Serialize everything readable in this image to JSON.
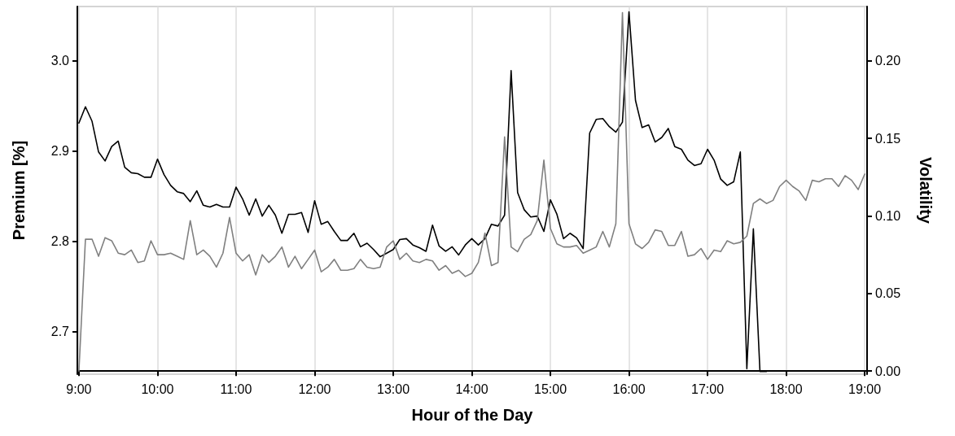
{
  "chart_data": {
    "type": "line",
    "xlabel": "Hour of the Day",
    "ylabel": "Premium [%]",
    "y2label": "Volatility",
    "x": [
      9,
      9.083,
      9.167,
      9.25,
      9.333,
      9.417,
      9.5,
      9.583,
      9.667,
      9.75,
      9.833,
      9.917,
      10,
      10.083,
      10.167,
      10.25,
      10.333,
      10.417,
      10.5,
      10.583,
      10.667,
      10.75,
      10.833,
      10.917,
      11,
      11.083,
      11.167,
      11.25,
      11.333,
      11.417,
      11.5,
      11.583,
      11.667,
      11.75,
      11.833,
      11.917,
      12,
      12.083,
      12.167,
      12.25,
      12.333,
      12.417,
      12.5,
      12.583,
      12.667,
      12.75,
      12.833,
      12.917,
      13,
      13.083,
      13.167,
      13.25,
      13.333,
      13.417,
      13.5,
      13.583,
      13.667,
      13.75,
      13.833,
      13.917,
      14,
      14.083,
      14.167,
      14.25,
      14.333,
      14.417,
      14.5,
      14.583,
      14.667,
      14.75,
      14.833,
      14.917,
      15,
      15.083,
      15.167,
      15.25,
      15.333,
      15.417,
      15.5,
      15.583,
      15.667,
      15.75,
      15.833,
      15.917,
      16,
      16.083,
      16.167,
      16.25,
      16.333,
      16.417,
      16.5,
      16.583,
      16.667,
      16.75,
      16.833,
      16.917,
      17,
      17.083,
      17.167,
      17.25,
      17.333,
      17.417,
      17.5,
      17.583,
      17.667,
      17.75,
      17.833,
      17.917,
      18,
      18.083,
      18.167,
      18.25,
      18.333,
      18.417,
      18.5,
      18.583,
      18.667,
      18.75,
      18.833,
      18.917,
      19
    ],
    "series": [
      {
        "color": "#000000",
        "values": [
          2.931,
          2.949,
          2.933,
          2.899,
          2.889,
          2.905,
          2.911,
          2.882,
          2.876,
          2.875,
          2.871,
          2.871,
          2.891,
          2.874,
          2.862,
          2.855,
          2.853,
          2.844,
          2.856,
          2.84,
          2.838,
          2.841,
          2.838,
          2.838,
          2.86,
          2.847,
          2.829,
          2.847,
          2.828,
          2.84,
          2.829,
          2.809,
          2.83,
          2.83,
          2.832,
          2.81,
          2.845,
          2.819,
          2.822,
          2.811,
          2.801,
          2.801,
          2.809,
          2.794,
          2.798,
          2.791,
          2.783,
          2.787,
          2.791,
          2.802,
          2.803,
          2.796,
          2.793,
          2.789,
          2.818,
          2.795,
          2.789,
          2.794,
          2.785,
          2.796,
          2.803,
          2.796,
          2.803,
          2.819,
          2.817,
          2.829,
          2.989,
          2.854,
          2.835,
          2.827,
          2.828,
          2.811,
          2.846,
          2.83,
          2.803,
          2.809,
          2.804,
          2.792,
          2.92,
          2.935,
          2.936,
          2.927,
          2.921,
          2.932,
          3.054,
          2.956,
          2.926,
          2.929,
          2.91,
          2.915,
          2.925,
          2.905,
          2.902,
          2.89,
          2.884,
          2.886,
          2.902,
          2.89,
          2.869,
          2.862,
          2.866,
          2.899,
          2.659,
          2.814,
          2.656,
          2.656,
          null,
          null,
          null,
          null,
          null,
          null,
          null,
          null,
          null,
          null,
          null,
          null,
          null,
          null,
          null
        ]
      },
      {
        "color": "#808080",
        "axis": "y2",
        "values": [
          0.0,
          0.085,
          0.085,
          0.074,
          0.086,
          0.084,
          0.076,
          0.075,
          0.078,
          0.07,
          0.071,
          0.084,
          0.075,
          0.075,
          0.076,
          0.074,
          0.072,
          0.097,
          0.075,
          0.078,
          0.074,
          0.067,
          0.076,
          0.099,
          0.076,
          0.071,
          0.075,
          0.062,
          0.075,
          0.07,
          0.074,
          0.08,
          0.067,
          0.074,
          0.066,
          0.072,
          0.078,
          0.064,
          0.067,
          0.072,
          0.065,
          0.065,
          0.066,
          0.072,
          0.067,
          0.066,
          0.067,
          0.08,
          0.084,
          0.072,
          0.076,
          0.071,
          0.07,
          0.072,
          0.071,
          0.065,
          0.068,
          0.063,
          0.065,
          0.061,
          0.063,
          0.07,
          0.089,
          0.068,
          0.07,
          0.151,
          0.08,
          0.077,
          0.085,
          0.088,
          0.097,
          0.136,
          0.092,
          0.082,
          0.08,
          0.08,
          0.081,
          0.076,
          0.078,
          0.08,
          0.09,
          0.08,
          0.095,
          0.231,
          0.095,
          0.082,
          0.079,
          0.083,
          0.091,
          0.09,
          0.081,
          0.081,
          0.09,
          0.074,
          0.075,
          0.079,
          0.072,
          0.078,
          0.077,
          0.084,
          0.082,
          0.083,
          0.087,
          0.108,
          0.111,
          0.108,
          0.11,
          0.119,
          0.123,
          0.119,
          0.116,
          0.11,
          0.123,
          0.122,
          0.124,
          0.124,
          0.119,
          0.126,
          0.123,
          0.117,
          0.127
        ]
      }
    ],
    "xlim": [
      8.98,
      19.03
    ],
    "xticks": [
      {
        "value": 9,
        "label": "9:00"
      },
      {
        "value": 10,
        "label": "10:00"
      },
      {
        "value": 11,
        "label": "11:00"
      },
      {
        "value": 12,
        "label": "12:00"
      },
      {
        "value": 13,
        "label": "13:00"
      },
      {
        "value": 14,
        "label": "14:00"
      },
      {
        "value": 15,
        "label": "15:00"
      },
      {
        "value": 16,
        "label": "16:00"
      },
      {
        "value": 17,
        "label": "17:00"
      },
      {
        "value": 18,
        "label": "18:00"
      },
      {
        "value": 19,
        "label": "19:00"
      }
    ],
    "ylim": [
      2.653,
      3.06
    ],
    "yticks": [
      2.7,
      2.8,
      2.9,
      {
        "value": 3,
        "label": "3.0"
      }
    ],
    "y2lim": [
      -0.002,
      0.235
    ],
    "y2ticks": [
      {
        "value": 0,
        "label": "0.00"
      },
      {
        "value": 0.05,
        "label": "0.05"
      },
      {
        "value": 0.1,
        "label": "0.10"
      },
      {
        "value": 0.15,
        "label": "0.15"
      },
      {
        "value": 0.2,
        "label": "0.20"
      }
    ],
    "grid": "x",
    "marker": "none",
    "line_style": "solid"
  }
}
